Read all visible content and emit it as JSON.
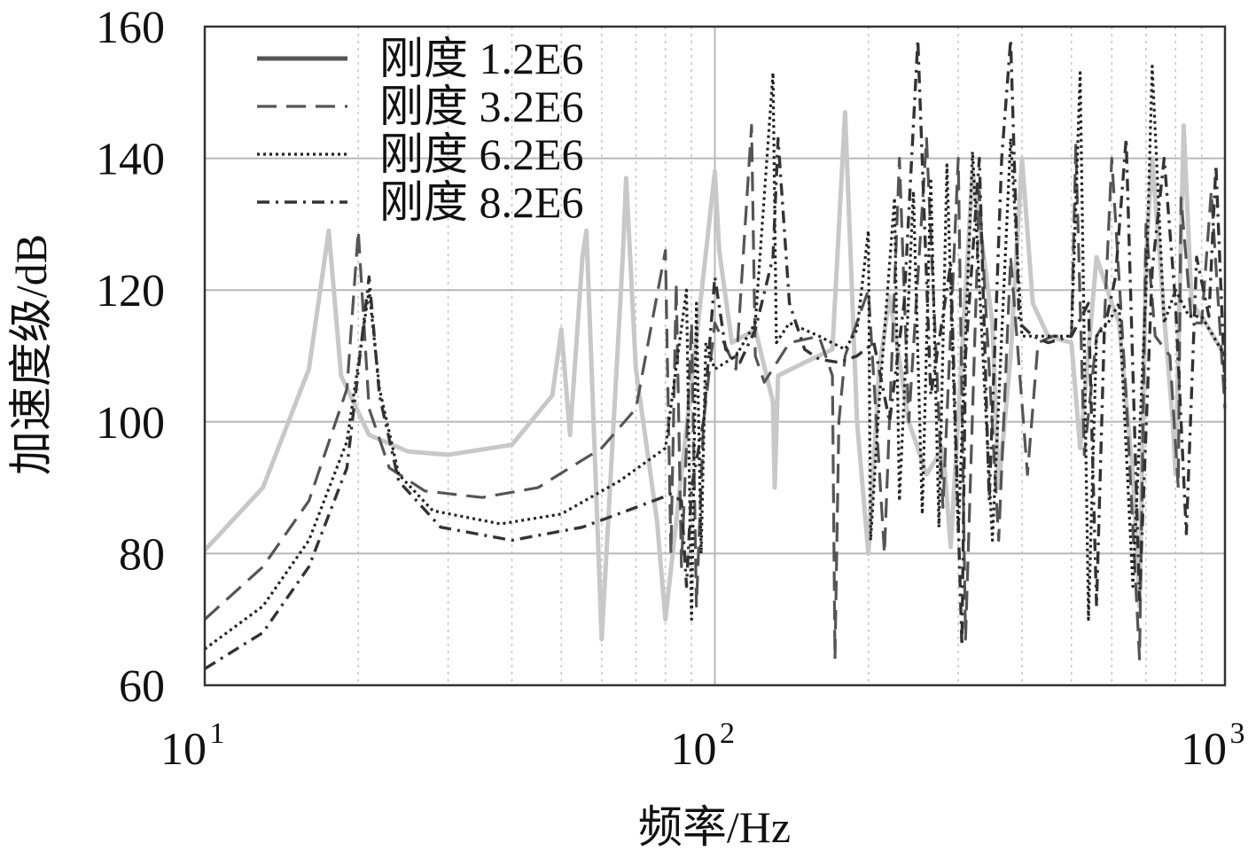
{
  "chart_data": {
    "type": "line",
    "xlabel": "频率/Hz",
    "ylabel": "加速度级/dB",
    "xscale": "log",
    "xlim": [
      10,
      1000
    ],
    "ylim": [
      60,
      160
    ],
    "yticks": [
      "60",
      "80",
      "100",
      "120",
      "140",
      "160"
    ],
    "xticks": [
      {
        "base": "10",
        "exp": "1"
      },
      {
        "base": "10",
        "exp": "2"
      },
      {
        "base": "10",
        "exp": "3"
      }
    ],
    "grid": true,
    "legend_position": "top-left",
    "series": [
      {
        "name": "刚度 1.2E6",
        "color": "#c8c8c8",
        "style": "solid",
        "x": [
          10,
          13,
          16,
          17.5,
          18.5,
          21,
          25,
          30,
          40,
          48,
          50,
          52,
          55,
          56,
          60,
          66,
          67,
          70,
          77,
          80,
          100,
          102,
          108,
          120,
          130,
          131,
          133,
          150,
          170,
          180,
          190,
          200,
          210,
          220,
          240,
          260,
          280,
          290,
          320,
          350,
          360,
          380,
          400,
          420,
          450,
          500,
          520,
          560,
          600,
          620,
          660,
          680,
          700,
          720,
          760,
          790,
          800,
          830,
          860,
          900,
          1000
        ],
        "y": [
          80.5,
          90,
          108,
          129,
          107,
          98,
          95.5,
          95,
          96.5,
          104,
          114,
          98,
          125,
          129,
          67,
          125,
          137,
          108,
          85,
          70,
          138,
          126,
          112,
          114,
          103,
          90,
          107,
          109,
          111,
          147,
          100,
          80,
          108,
          119,
          100,
          92,
          96,
          81,
          138,
          115,
          90,
          110,
          140,
          118,
          113,
          112,
          96,
          125,
          118,
          115,
          92,
          72,
          125,
          140,
          116,
          100,
          92,
          145,
          118,
          116,
          110
        ]
      },
      {
        "name": "刚度 3.2E6",
        "color": "#555555",
        "style": "dashed",
        "x": [
          10,
          13,
          16,
          19,
          20,
          21,
          23,
          27,
          35,
          45,
          60,
          70,
          80,
          82,
          84,
          86,
          90,
          92,
          95,
          100,
          110,
          118,
          120,
          125,
          140,
          160,
          170,
          172,
          175,
          180,
          200,
          215,
          230,
          240,
          260,
          280,
          300,
          310,
          330,
          360,
          380,
          410,
          430,
          460,
          500,
          510,
          530,
          560,
          580,
          600,
          640,
          680,
          700,
          730,
          780,
          810,
          820,
          860,
          900,
          940,
          1000
        ],
        "y": [
          70,
          78,
          88,
          105,
          129,
          102,
          93,
          89.5,
          88.5,
          90,
          96,
          102,
          126,
          80,
          121,
          78,
          115,
          72,
          100,
          115,
          108,
          145,
          110,
          106,
          112,
          113,
          107,
          64,
          100,
          110,
          120,
          80,
          140,
          100,
          143,
          87,
          140,
          67,
          135,
          82,
          125,
          92,
          112,
          113,
          113,
          142,
          95,
          113,
          115,
          140,
          104,
          64,
          130,
          113,
          110,
          90,
          134,
          115,
          115,
          135,
          102
        ]
      },
      {
        "name": "刚度 6.2E6",
        "color": "#222222",
        "style": "dotted",
        "x": [
          10,
          13,
          16,
          19,
          21,
          22,
          24,
          28,
          38,
          50,
          65,
          80,
          88,
          90,
          92,
          94,
          96,
          100,
          110,
          120,
          130,
          132,
          140,
          160,
          180,
          190,
          200,
          202,
          210,
          225,
          230,
          245,
          255,
          265,
          275,
          285,
          300,
          320,
          350,
          380,
          400,
          450,
          500,
          520,
          540,
          560,
          590,
          620,
          660,
          700,
          720,
          760,
          800,
          850,
          900,
          1000
        ],
        "y": [
          65.5,
          72,
          82,
          97,
          120,
          105,
          92,
          86.5,
          84.5,
          86,
          91,
          96,
          120,
          70,
          118,
          80,
          112,
          108,
          110,
          115,
          153,
          112,
          115,
          113,
          111,
          114,
          129,
          82,
          103,
          134,
          88,
          135,
          86,
          137,
          84,
          139,
          83,
          141,
          82,
          143,
          113,
          113,
          113,
          153,
          70,
          113,
          115,
          118,
          75,
          120,
          154,
          115,
          120,
          116,
          116,
          110
        ]
      },
      {
        "name": "刚度 8.2E6",
        "color": "#333333",
        "style": "dashdot",
        "x": [
          10,
          13,
          16,
          19,
          21,
          22,
          24,
          29,
          40,
          55,
          70,
          82,
          86,
          88,
          90,
          95,
          100,
          105,
          112,
          120,
          130,
          133,
          140,
          150,
          160,
          175,
          190,
          205,
          220,
          235,
          250,
          265,
          290,
          305,
          310,
          330,
          345,
          365,
          380,
          395,
          420,
          450,
          500,
          540,
          560,
          580,
          610,
          640,
          680,
          720,
          760,
          800,
          840,
          880,
          930,
          960,
          1000
        ],
        "y": [
          62.5,
          68,
          78,
          93,
          122,
          104,
          91,
          84,
          82,
          84,
          87,
          89,
          88,
          75,
          90,
          100,
          122,
          111,
          109,
          114,
          125,
          143,
          118,
          111,
          109.5,
          109,
          110,
          112,
          100,
          118,
          158,
          104,
          124,
          66,
          110,
          140,
          88,
          140,
          158,
          115,
          113,
          112,
          113,
          118,
          72,
          114,
          122,
          143,
          73,
          123,
          140,
          118,
          83,
          125,
          116,
          139,
          105
        ]
      }
    ]
  }
}
